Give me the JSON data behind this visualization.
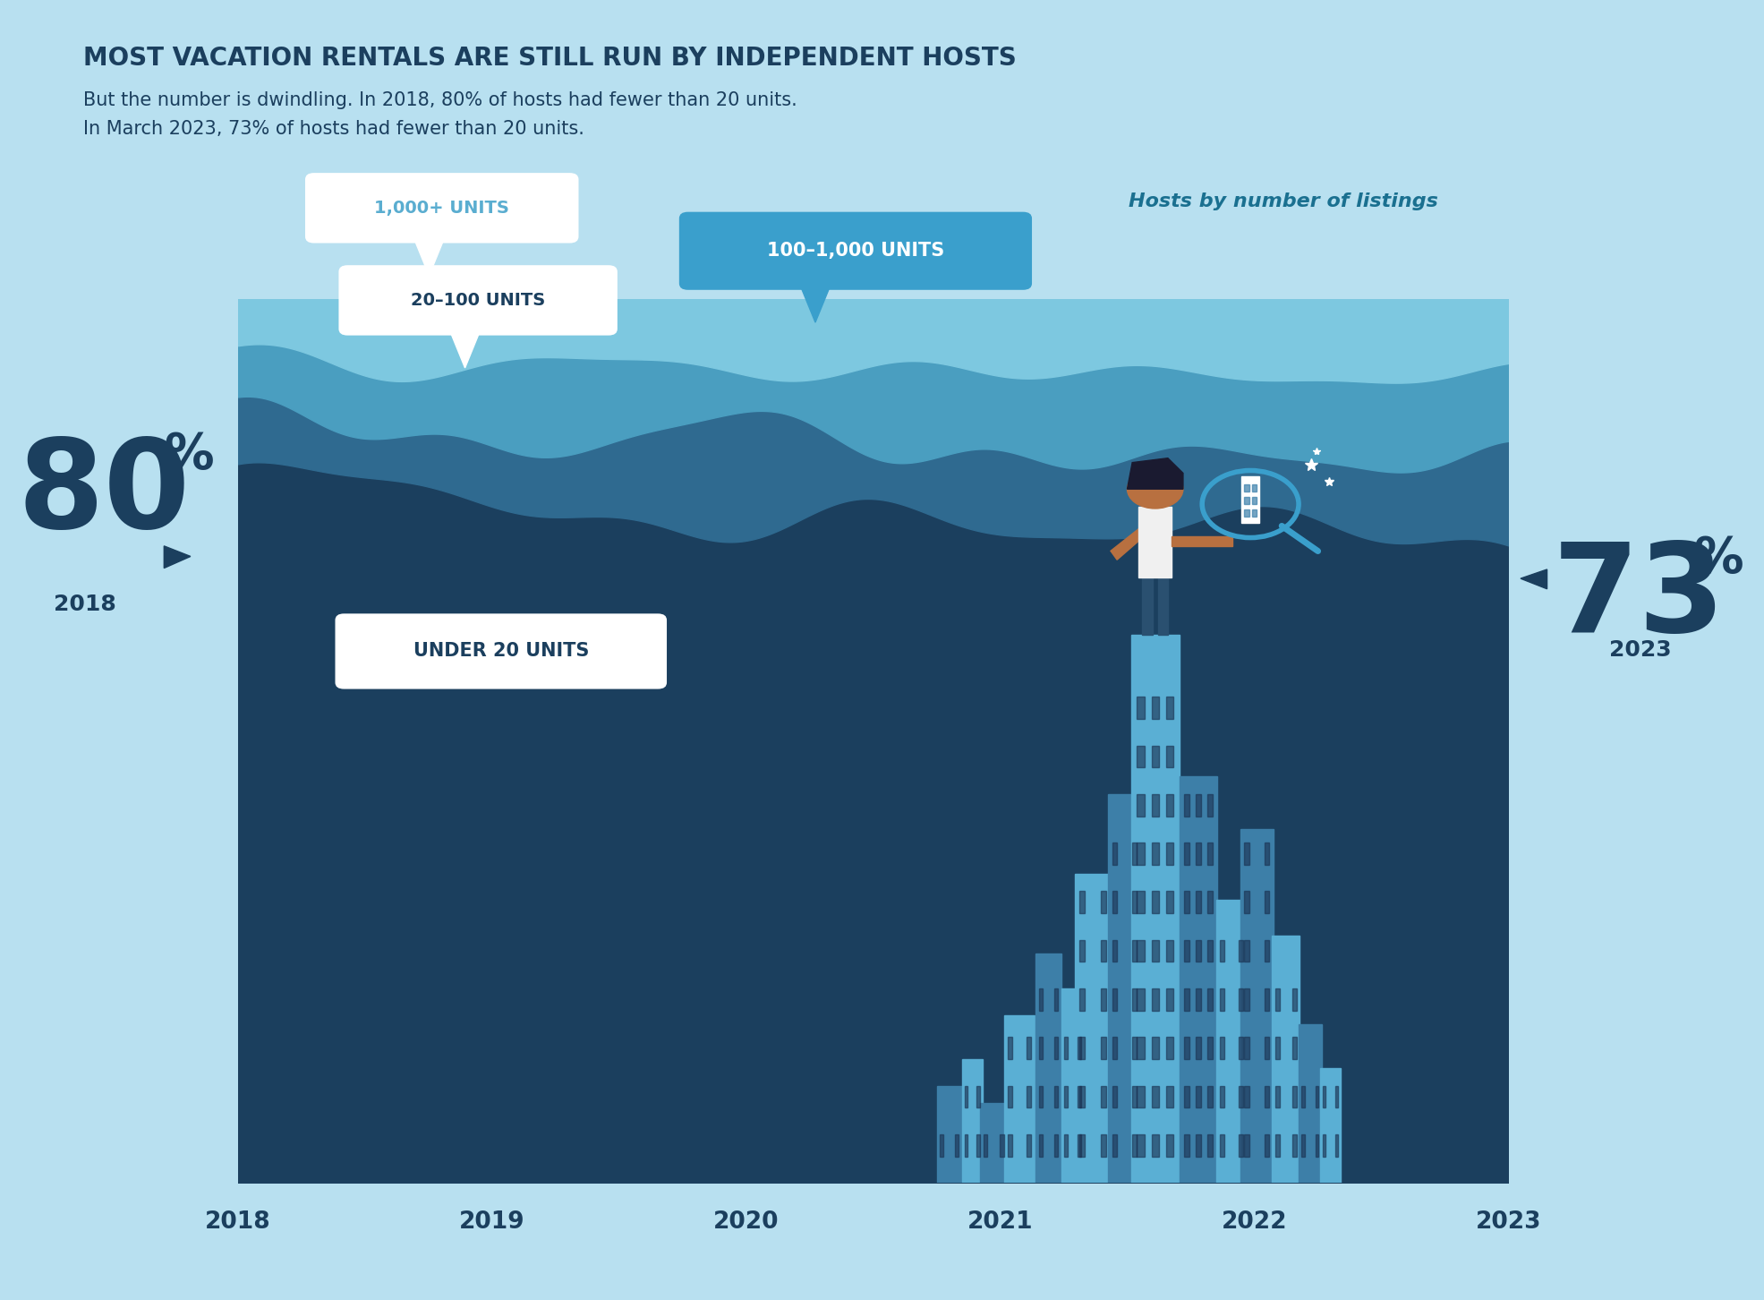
{
  "bg_color": "#b8e0f0",
  "chart_bg": "#1b3f5e",
  "title": "MOST VACATION RENTALS ARE STILL RUN BY INDEPENDENT HOSTS",
  "subtitle_line1": "But the number is dwindling. In 2018, 80% of hosts had fewer than 20 units.",
  "subtitle_line2": "In March 2023, 73% of hosts had fewer than 20 units.",
  "title_color": "#1b3f5e",
  "subtitle_color": "#1b3f5e",
  "legend_title": "Hosts by number of listings",
  "legend_color": "#1a7090",
  "pct_80": "80",
  "pct_73": "73",
  "pct_color": "#1b3f5e",
  "x_labels": [
    "2018",
    "2019",
    "2020",
    "2021",
    "2022",
    "2023"
  ],
  "under20_label": "UNDER 20 UNITS",
  "label_20_100": "20–100 UNITS",
  "label_100_1000": "100–1,000 UNITS",
  "label_1000plus": "1,000+ UNITS",
  "label_color_dark": "#1b3f5e",
  "color_1000plus": "#7dc8e0",
  "color_100_1000": "#4a9ec0",
  "color_20_100": "#2f6a90",
  "color_under20": "#1b3f5e",
  "color_city_light": "#4a8fbb",
  "color_city_mid": "#5aadd0",
  "color_city_dark": "#2a6080"
}
